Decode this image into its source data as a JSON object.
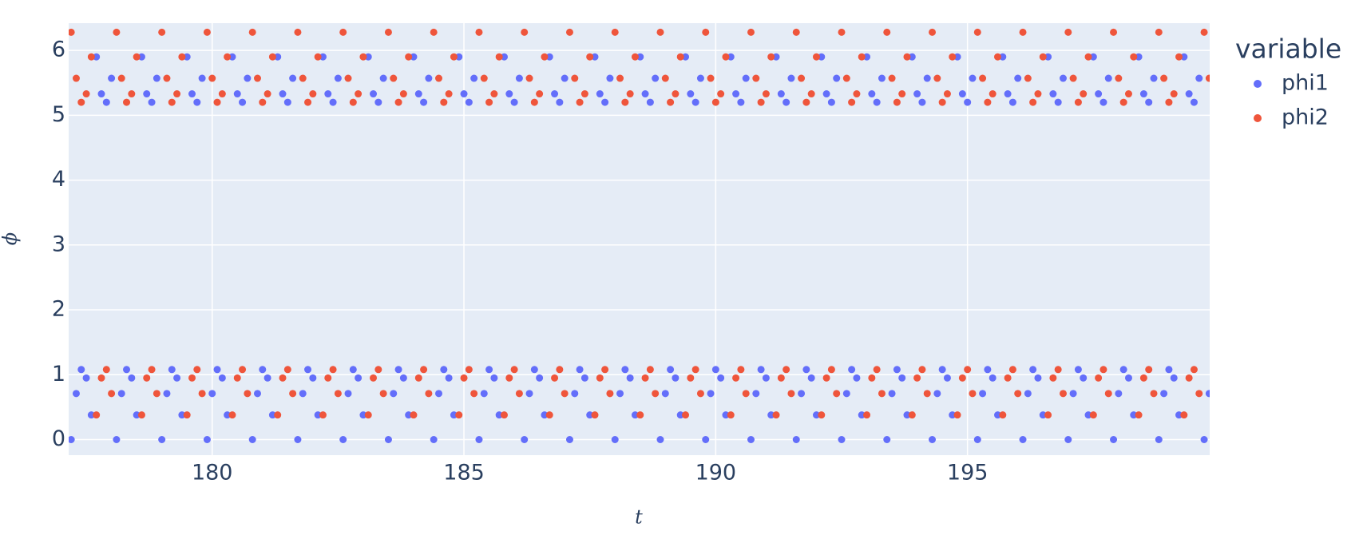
{
  "chart_data": {
    "type": "scatter",
    "x_label": "t",
    "y_label": "ϕ",
    "legend_title": "variable",
    "xlim": [
      177.15,
      199.81
    ],
    "ylim": [
      -0.24,
      6.42
    ],
    "xticks": [
      180,
      185,
      190,
      195
    ],
    "yticks": [
      0,
      1,
      2,
      3,
      4,
      5,
      6
    ],
    "grid": true,
    "x": [
      177.2,
      177.3,
      177.4,
      177.5,
      177.6,
      177.7,
      177.8,
      177.9,
      178,
      178.1,
      178.2,
      178.3,
      178.4,
      178.5,
      178.6,
      178.7,
      178.8,
      178.9,
      179,
      179.1,
      179.2,
      179.3,
      179.4,
      179.5,
      179.6,
      179.7,
      179.8,
      179.9,
      180,
      180.1,
      180.2,
      180.3,
      180.4,
      180.5,
      180.6,
      180.7,
      180.8,
      180.9,
      181,
      181.1,
      181.2,
      181.3,
      181.4,
      181.5,
      181.6,
      181.7,
      181.8,
      181.9,
      182,
      182.1,
      182.2,
      182.3,
      182.4,
      182.5,
      182.6,
      182.7,
      182.8,
      182.9,
      183,
      183.1,
      183.2,
      183.3,
      183.4,
      183.5,
      183.6,
      183.7,
      183.8,
      183.9,
      184,
      184.1,
      184.2,
      184.3,
      184.4,
      184.5,
      184.6,
      184.7,
      184.8,
      184.9,
      185,
      185.1,
      185.2,
      185.3,
      185.4,
      185.5,
      185.6,
      185.7,
      185.8,
      185.9,
      186,
      186.1,
      186.2,
      186.3,
      186.4,
      186.5,
      186.6,
      186.7,
      186.8,
      186.9,
      187,
      187.1,
      187.2,
      187.3,
      187.4,
      187.5,
      187.6,
      187.7,
      187.8,
      187.9,
      188,
      188.1,
      188.2,
      188.3,
      188.4,
      188.5,
      188.6,
      188.7,
      188.8,
      188.9,
      189,
      189.1,
      189.2,
      189.3,
      189.4,
      189.5,
      189.6,
      189.7,
      189.8,
      189.9,
      190,
      190.1,
      190.2,
      190.3,
      190.4,
      190.5,
      190.6,
      190.7,
      190.8,
      190.9,
      191,
      191.1,
      191.2,
      191.3,
      191.4,
      191.5,
      191.6,
      191.7,
      191.8,
      191.9,
      192,
      192.1,
      192.2,
      192.3,
      192.4,
      192.5,
      192.6,
      192.7,
      192.8,
      192.9,
      193,
      193.1,
      193.2,
      193.3,
      193.4,
      193.5,
      193.6,
      193.7,
      193.8,
      193.9,
      194,
      194.1,
      194.2,
      194.3,
      194.4,
      194.5,
      194.6,
      194.7,
      194.8,
      194.9,
      195,
      195.1,
      195.2,
      195.3,
      195.4,
      195.5,
      195.6,
      195.7,
      195.8,
      195.9,
      196,
      196.1,
      196.2,
      196.3,
      196.4,
      196.5,
      196.6,
      196.7,
      196.8,
      196.9,
      197,
      197.1,
      197.2,
      197.3,
      197.4,
      197.5,
      197.6,
      197.7,
      197.8,
      197.9,
      198,
      198.1,
      198.2,
      198.3,
      198.4,
      198.5,
      198.6,
      198.7,
      198.8,
      198.9,
      199,
      199.1,
      199.2,
      199.3,
      199.4,
      199.5,
      199.6,
      199.7,
      199.8
    ],
    "series": [
      {
        "name": "phi1",
        "color": "#636efa",
        "values": [
          0,
          0.71,
          1.08,
          0.95,
          0.38,
          5.9,
          5.33,
          5.2,
          5.57,
          0,
          0.71,
          1.08,
          0.95,
          0.38,
          5.9,
          5.33,
          5.2,
          5.57,
          0,
          0.71,
          1.08,
          0.95,
          0.38,
          5.9,
          5.33,
          5.2,
          5.57,
          0,
          0.71,
          1.08,
          0.95,
          0.38,
          5.9,
          5.33,
          5.2,
          5.57,
          0,
          0.71,
          1.08,
          0.95,
          0.38,
          5.9,
          5.33,
          5.2,
          5.57,
          0,
          0.71,
          1.08,
          0.95,
          0.38,
          5.9,
          5.33,
          5.2,
          5.57,
          0,
          0.71,
          1.08,
          0.95,
          0.38,
          5.9,
          5.33,
          5.2,
          5.57,
          0,
          0.71,
          1.08,
          0.95,
          0.38,
          5.9,
          5.33,
          5.2,
          5.57,
          0,
          0.71,
          1.08,
          0.95,
          0.38,
          5.9,
          5.33,
          5.2,
          5.57,
          0,
          0.71,
          1.08,
          0.95,
          0.38,
          5.9,
          5.33,
          5.2,
          5.57,
          0,
          0.71,
          1.08,
          0.95,
          0.38,
          5.9,
          5.33,
          5.2,
          5.57,
          0,
          0.71,
          1.08,
          0.95,
          0.38,
          5.9,
          5.33,
          5.2,
          5.57,
          0,
          0.71,
          1.08,
          0.95,
          0.38,
          5.9,
          5.33,
          5.2,
          5.57,
          0,
          0.71,
          1.08,
          0.95,
          0.38,
          5.9,
          5.33,
          5.2,
          5.57,
          0,
          0.71,
          1.08,
          0.95,
          0.38,
          5.9,
          5.33,
          5.2,
          5.57,
          0,
          0.71,
          1.08,
          0.95,
          0.38,
          5.9,
          5.33,
          5.2,
          5.57,
          0,
          0.71,
          1.08,
          0.95,
          0.38,
          5.9,
          5.33,
          5.2,
          5.57,
          0,
          0.71,
          1.08,
          0.95,
          0.38,
          5.9,
          5.33,
          5.2,
          5.57,
          0,
          0.71,
          1.08,
          0.95,
          0.38,
          5.9,
          5.33,
          5.2,
          5.57,
          0,
          0.71,
          1.08,
          0.95,
          0.38,
          5.9,
          5.33,
          5.2,
          5.57,
          0,
          0.71,
          1.08,
          0.95,
          0.38,
          5.9,
          5.33,
          5.2,
          5.57,
          0,
          0.71,
          1.08,
          0.95,
          0.38,
          5.9,
          5.33,
          5.2,
          5.57,
          0,
          0.71,
          1.08,
          0.95,
          0.38,
          5.9,
          5.33,
          5.2,
          5.57,
          0,
          0.71,
          1.08,
          0.95,
          0.38,
          5.9,
          5.33,
          5.2,
          5.57,
          0,
          0.71,
          1.08,
          0.95,
          0.38,
          5.9,
          5.33,
          5.2,
          5.57,
          0,
          0.71
        ]
      },
      {
        "name": "phi2",
        "color": "#ef553b",
        "values": [
          6.28,
          5.57,
          5.2,
          5.33,
          5.9,
          0.38,
          0.95,
          1.08,
          0.71,
          6.28,
          5.57,
          5.2,
          5.33,
          5.9,
          0.38,
          0.95,
          1.08,
          0.71,
          6.28,
          5.57,
          5.2,
          5.33,
          5.9,
          0.38,
          0.95,
          1.08,
          0.71,
          6.28,
          5.57,
          5.2,
          5.33,
          5.9,
          0.38,
          0.95,
          1.08,
          0.71,
          6.28,
          5.57,
          5.2,
          5.33,
          5.9,
          0.38,
          0.95,
          1.08,
          0.71,
          6.28,
          5.57,
          5.2,
          5.33,
          5.9,
          0.38,
          0.95,
          1.08,
          0.71,
          6.28,
          5.57,
          5.2,
          5.33,
          5.9,
          0.38,
          0.95,
          1.08,
          0.71,
          6.28,
          5.57,
          5.2,
          5.33,
          5.9,
          0.38,
          0.95,
          1.08,
          0.71,
          6.28,
          5.57,
          5.2,
          5.33,
          5.9,
          0.38,
          0.95,
          1.08,
          0.71,
          6.28,
          5.57,
          5.2,
          5.33,
          5.9,
          0.38,
          0.95,
          1.08,
          0.71,
          6.28,
          5.57,
          5.2,
          5.33,
          5.9,
          0.38,
          0.95,
          1.08,
          0.71,
          6.28,
          5.57,
          5.2,
          5.33,
          5.9,
          0.38,
          0.95,
          1.08,
          0.71,
          6.28,
          5.57,
          5.2,
          5.33,
          5.9,
          0.38,
          0.95,
          1.08,
          0.71,
          6.28,
          5.57,
          5.2,
          5.33,
          5.9,
          0.38,
          0.95,
          1.08,
          0.71,
          6.28,
          5.57,
          5.2,
          5.33,
          5.9,
          0.38,
          0.95,
          1.08,
          0.71,
          6.28,
          5.57,
          5.2,
          5.33,
          5.9,
          0.38,
          0.95,
          1.08,
          0.71,
          6.28,
          5.57,
          5.2,
          5.33,
          5.9,
          0.38,
          0.95,
          1.08,
          0.71,
          6.28,
          5.57,
          5.2,
          5.33,
          5.9,
          0.38,
          0.95,
          1.08,
          0.71,
          6.28,
          5.57,
          5.2,
          5.33,
          5.9,
          0.38,
          0.95,
          1.08,
          0.71,
          6.28,
          5.57,
          5.2,
          5.33,
          5.9,
          0.38,
          0.95,
          1.08,
          0.71,
          6.28,
          5.57,
          5.2,
          5.33,
          5.9,
          0.38,
          0.95,
          1.08,
          0.71,
          6.28,
          5.57,
          5.2,
          5.33,
          5.9,
          0.38,
          0.95,
          1.08,
          0.71,
          6.28,
          5.57,
          5.2,
          5.33,
          5.9,
          0.38,
          0.95,
          1.08,
          0.71,
          6.28,
          5.57,
          5.2,
          5.33,
          5.9,
          0.38,
          0.95,
          1.08,
          0.71,
          6.28,
          5.57,
          5.2,
          5.33,
          5.9,
          0.38,
          0.95,
          1.08,
          0.71,
          6.28,
          5.57
        ]
      }
    ]
  }
}
